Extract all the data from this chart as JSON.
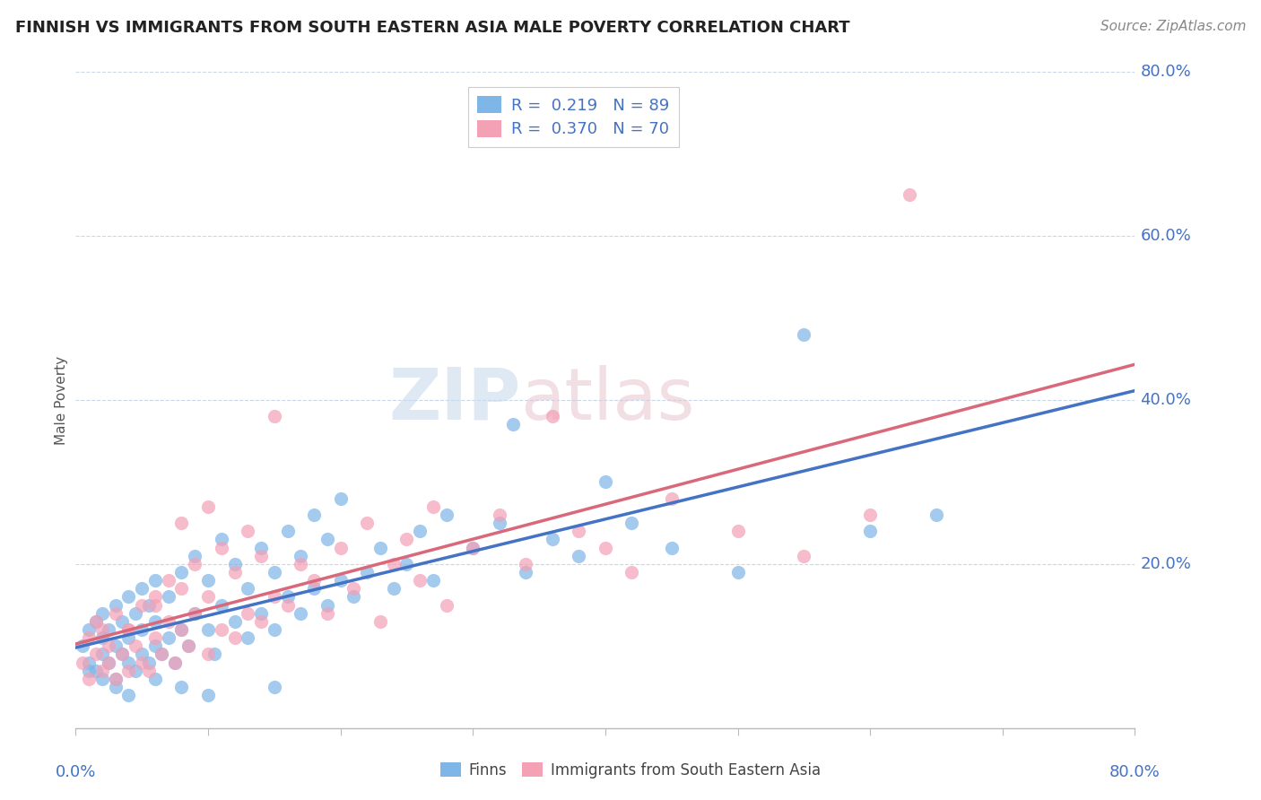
{
  "title": "FINNISH VS IMMIGRANTS FROM SOUTH EASTERN ASIA MALE POVERTY CORRELATION CHART",
  "source_text": "Source: ZipAtlas.com",
  "ylabel": "Male Poverty",
  "watermark": "ZIPatlas",
  "xlim": [
    0.0,
    0.8
  ],
  "ylim": [
    0.0,
    0.8
  ],
  "ytick_labels": [
    "20.0%",
    "40.0%",
    "60.0%",
    "80.0%"
  ],
  "ytick_vals": [
    0.2,
    0.4,
    0.6,
    0.8
  ],
  "legend_r1": "R =  0.219",
  "legend_n1": "N = 89",
  "legend_r2": "R =  0.370",
  "legend_n2": "N = 70",
  "color_finns": "#7eb6e8",
  "color_immigrants": "#f4a0b5",
  "color_line_finns": "#4472c4",
  "color_line_immigrants": "#d9687a",
  "color_axis_labels": "#4472c4",
  "color_legend_text": "#333333",
  "background_color": "#ffffff",
  "grid_color": "#c8d8e8",
  "finns_x": [
    0.005,
    0.01,
    0.01,
    0.015,
    0.015,
    0.02,
    0.02,
    0.02,
    0.025,
    0.025,
    0.03,
    0.03,
    0.03,
    0.035,
    0.035,
    0.04,
    0.04,
    0.04,
    0.045,
    0.045,
    0.05,
    0.05,
    0.05,
    0.055,
    0.055,
    0.06,
    0.06,
    0.06,
    0.065,
    0.07,
    0.07,
    0.075,
    0.08,
    0.08,
    0.085,
    0.09,
    0.09,
    0.1,
    0.1,
    0.105,
    0.11,
    0.11,
    0.12,
    0.12,
    0.13,
    0.13,
    0.14,
    0.14,
    0.15,
    0.15,
    0.16,
    0.16,
    0.17,
    0.17,
    0.18,
    0.18,
    0.19,
    0.19,
    0.2,
    0.2,
    0.21,
    0.22,
    0.23,
    0.24,
    0.25,
    0.26,
    0.27,
    0.28,
    0.3,
    0.32,
    0.34,
    0.36,
    0.38,
    0.4,
    0.42,
    0.45,
    0.5,
    0.55,
    0.6,
    0.65,
    0.33,
    0.15,
    0.1,
    0.08,
    0.06,
    0.04,
    0.03,
    0.02,
    0.01
  ],
  "finns_y": [
    0.1,
    0.08,
    0.12,
    0.07,
    0.13,
    0.09,
    0.11,
    0.14,
    0.08,
    0.12,
    0.06,
    0.1,
    0.15,
    0.09,
    0.13,
    0.08,
    0.11,
    0.16,
    0.07,
    0.14,
    0.09,
    0.12,
    0.17,
    0.08,
    0.15,
    0.1,
    0.13,
    0.18,
    0.09,
    0.11,
    0.16,
    0.08,
    0.12,
    0.19,
    0.1,
    0.14,
    0.21,
    0.12,
    0.18,
    0.09,
    0.15,
    0.23,
    0.13,
    0.2,
    0.11,
    0.17,
    0.14,
    0.22,
    0.12,
    0.19,
    0.16,
    0.24,
    0.14,
    0.21,
    0.17,
    0.26,
    0.15,
    0.23,
    0.18,
    0.28,
    0.16,
    0.19,
    0.22,
    0.17,
    0.2,
    0.24,
    0.18,
    0.26,
    0.22,
    0.25,
    0.19,
    0.23,
    0.21,
    0.3,
    0.25,
    0.22,
    0.19,
    0.48,
    0.24,
    0.26,
    0.37,
    0.05,
    0.04,
    0.05,
    0.06,
    0.04,
    0.05,
    0.06,
    0.07
  ],
  "immigrants_x": [
    0.005,
    0.01,
    0.01,
    0.015,
    0.015,
    0.02,
    0.02,
    0.025,
    0.025,
    0.03,
    0.03,
    0.035,
    0.04,
    0.04,
    0.045,
    0.05,
    0.05,
    0.055,
    0.06,
    0.06,
    0.065,
    0.07,
    0.07,
    0.075,
    0.08,
    0.08,
    0.085,
    0.09,
    0.09,
    0.1,
    0.1,
    0.11,
    0.11,
    0.12,
    0.12,
    0.13,
    0.13,
    0.14,
    0.14,
    0.15,
    0.15,
    0.16,
    0.17,
    0.18,
    0.19,
    0.2,
    0.21,
    0.22,
    0.23,
    0.24,
    0.25,
    0.26,
    0.27,
    0.28,
    0.3,
    0.32,
    0.34,
    0.36,
    0.38,
    0.4,
    0.42,
    0.45,
    0.5,
    0.55,
    0.6,
    0.63,
    0.1,
    0.08,
    0.06,
    0.04
  ],
  "immigrants_y": [
    0.08,
    0.06,
    0.11,
    0.09,
    0.13,
    0.07,
    0.12,
    0.08,
    0.1,
    0.06,
    0.14,
    0.09,
    0.07,
    0.12,
    0.1,
    0.08,
    0.15,
    0.07,
    0.11,
    0.16,
    0.09,
    0.13,
    0.18,
    0.08,
    0.12,
    0.17,
    0.1,
    0.14,
    0.2,
    0.09,
    0.16,
    0.12,
    0.22,
    0.11,
    0.19,
    0.14,
    0.24,
    0.13,
    0.21,
    0.16,
    0.38,
    0.15,
    0.2,
    0.18,
    0.14,
    0.22,
    0.17,
    0.25,
    0.13,
    0.2,
    0.23,
    0.18,
    0.27,
    0.15,
    0.22,
    0.26,
    0.2,
    0.38,
    0.24,
    0.22,
    0.19,
    0.28,
    0.24,
    0.21,
    0.26,
    0.65,
    0.27,
    0.25,
    0.15,
    0.12
  ]
}
